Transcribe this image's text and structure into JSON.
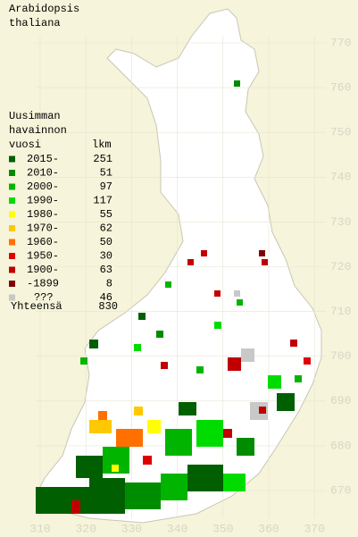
{
  "title": [
    "Arabidopsis",
    "thaliana"
  ],
  "legend": {
    "heading": [
      "Uusimman",
      "havainnon",
      "vuosi"
    ],
    "count_heading": "lkm",
    "entries": [
      {
        "label": "2015-",
        "count": 251,
        "color": "#005f00"
      },
      {
        "label": "2010-",
        "count": 51,
        "color": "#008c00"
      },
      {
        "label": "2000-",
        "count": 97,
        "color": "#00b400"
      },
      {
        "label": "1990-",
        "count": 117,
        "color": "#00dc00"
      },
      {
        "label": "1980-",
        "count": 55,
        "color": "#ffff00"
      },
      {
        "label": "1970-",
        "count": 62,
        "color": "#ffc800"
      },
      {
        "label": "1960-",
        "count": 50,
        "color": "#ff7000"
      },
      {
        "label": "1950-",
        "count": 30,
        "color": "#e00000"
      },
      {
        "label": "1900-",
        "count": 63,
        "color": "#c00000"
      },
      {
        "label": "-1899",
        "count": 8,
        "color": "#800000"
      },
      {
        "label": "???",
        "count": 46,
        "color": "#c8c8c8"
      }
    ],
    "total_label": "Yhteensä",
    "total": 830
  },
  "grid": {
    "northing": [
      770,
      760,
      750,
      740,
      730,
      720,
      710,
      700,
      690,
      680,
      670
    ],
    "easting": [
      310,
      320,
      330,
      340,
      350,
      360,
      370
    ]
  }
}
